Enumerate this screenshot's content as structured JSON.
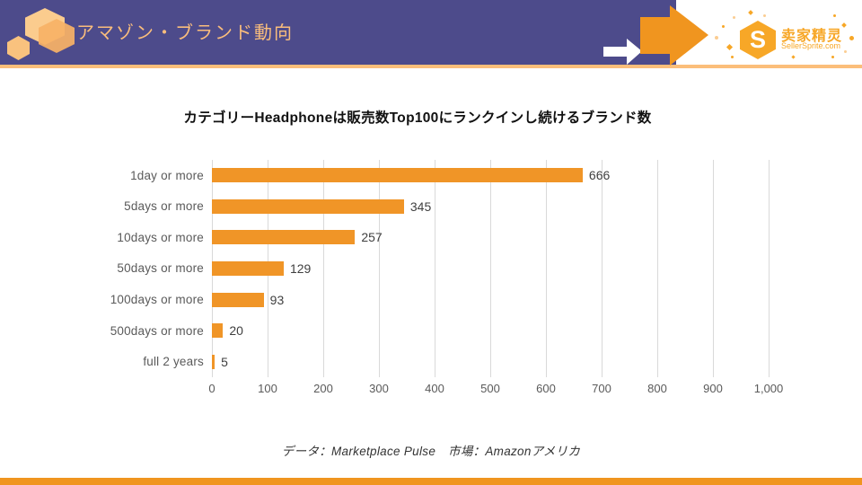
{
  "header": {
    "title": "アマゾン・ブランド動向",
    "logo": {
      "brand_initial": "S",
      "brand_cn": "卖家精灵",
      "brand_domain": "SellerSprite.com"
    }
  },
  "chart_data": {
    "type": "bar",
    "orientation": "horizontal",
    "title": "カテゴリーHeadphoneは販売数Top100にランクインし続けるブランド数",
    "categories": [
      "1day or more",
      "5days or more",
      "10days or more",
      "50days or more",
      "100days or more",
      "500days or more",
      "full 2 years"
    ],
    "values": [
      666,
      345,
      257,
      129,
      93,
      20,
      5
    ],
    "xlim": [
      0,
      1000
    ],
    "xticks": [
      0,
      100,
      200,
      300,
      400,
      500,
      600,
      700,
      800,
      900,
      1000
    ],
    "xtick_labels": [
      "0",
      "100",
      "200",
      "300",
      "400",
      "500",
      "600",
      "700",
      "800",
      "900",
      "1,000"
    ],
    "grid": true,
    "legend": false,
    "value_labels": true,
    "bar_color": "#F09527"
  },
  "footer": {
    "caption": "データ：Marketplace Pulse　市場：Amazonアメリカ"
  },
  "colors": {
    "header_purple": "#4D4B8B",
    "header_title_orange": "#F9BD7C",
    "underline_orange": "#FBBE7A",
    "accent_orange": "#F0951F",
    "logo_orange": "#F7A727",
    "gridline_gray": "#D9D9D9",
    "label_gray": "#5A5A5A"
  }
}
